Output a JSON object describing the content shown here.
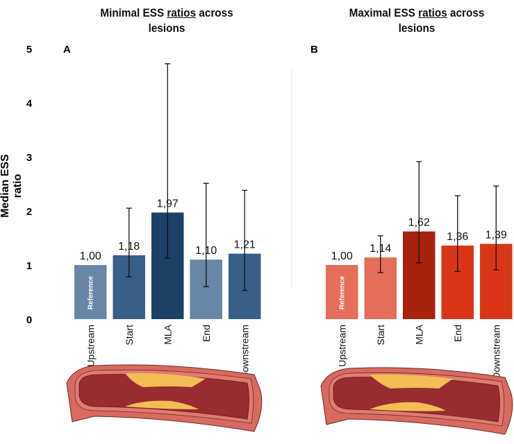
{
  "chart_data": [
    {
      "type": "bar",
      "panel": "A",
      "title_parts": [
        "Minimal ESS ",
        "ratios",
        " across lesions"
      ],
      "ylabel": "Median ESS ratio",
      "ylim": [
        0,
        5
      ],
      "yticks": [
        "0",
        "1",
        "2",
        "3",
        "4",
        "5"
      ],
      "categories": [
        "Upstream",
        "Start",
        "MLA",
        "End",
        "Downstream"
      ],
      "values": [
        1.0,
        1.18,
        1.97,
        1.1,
        1.21
      ],
      "labels": [
        "1,00",
        "1,18",
        "1,97",
        "1,10",
        "1,21"
      ],
      "error_low": [
        null,
        0.78,
        1.13,
        0.6,
        0.53
      ],
      "error_high": [
        null,
        2.05,
        4.72,
        2.51,
        2.38
      ],
      "colors": [
        "#6886a6",
        "#375f88",
        "#1d4066",
        "#6886a6",
        "#375f88"
      ],
      "reference_label": "Reference"
    },
    {
      "type": "bar",
      "panel": "B",
      "title_parts": [
        "Maximal ESS ",
        "ratios",
        " across lesions"
      ],
      "ylim": [
        0,
        5
      ],
      "categories": [
        "Upstream",
        "Start",
        "MLA",
        "End",
        "Downstream"
      ],
      "values": [
        1.0,
        1.14,
        1.62,
        1.36,
        1.39
      ],
      "labels": [
        "1,00",
        "1,14",
        "1,62",
        "1,36",
        "1,39"
      ],
      "error_low": [
        null,
        0.86,
        1.04,
        0.88,
        0.91
      ],
      "error_high": [
        null,
        1.54,
        2.91,
        2.28,
        2.46
      ],
      "colors": [
        "#e46e59",
        "#e46e59",
        "#a6220d",
        "#d93617",
        "#d93617"
      ],
      "reference_label": "Reference"
    }
  ]
}
